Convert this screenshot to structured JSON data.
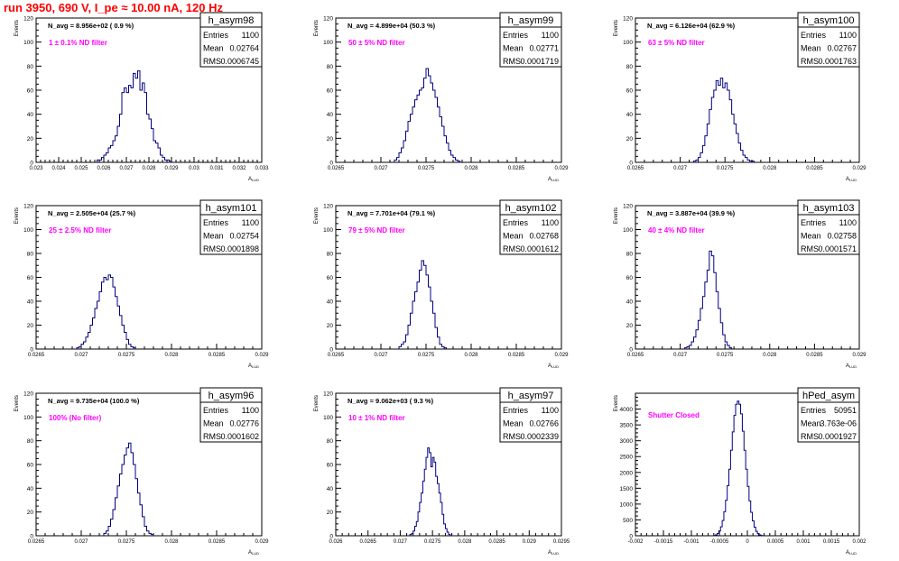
{
  "run_title": "run 3950,   690 V, I_pe ≈ 10.00 nA, 120 Hz",
  "colors": {
    "hist_line": "#00007f",
    "annotation": "#ff00ff",
    "title": "#ff0000",
    "axes": "#000000"
  },
  "chart_data": [
    {
      "type": "histogram",
      "title": "h_asym98",
      "stats": [
        [
          "Entries",
          "1100"
        ],
        [
          "Mean",
          "0.02764"
        ],
        [
          "RMS",
          "0.0006745"
        ]
      ],
      "navg": "N_avg = 8.956e+02 ( 0.9 %)",
      "filter": "1 ± 0.1% ND filter",
      "ylabel": "Events",
      "xlabel": "A",
      "xlim": [
        0.023,
        0.033
      ],
      "ylim": [
        0,
        120
      ],
      "xticks": [
        0.023,
        0.024,
        0.025,
        0.026,
        0.027,
        0.028,
        0.029,
        0.03,
        0.031,
        0.032,
        0.033
      ],
      "xtick_labels": [
        "0.023",
        "0.024",
        "0.025",
        "0.026",
        "0.027",
        "0.028",
        "0.029",
        "0.03",
        "0.031",
        "0.032",
        "0.033"
      ],
      "yticks": [
        0,
        20,
        40,
        60,
        80,
        100,
        120
      ],
      "bin_start": 0.0257,
      "bin_width": 0.0001,
      "counts": [
        2,
        2,
        4,
        6,
        8,
        12,
        14,
        18,
        22,
        30,
        40,
        58,
        62,
        58,
        64,
        62,
        74,
        70,
        76,
        60,
        66,
        58,
        40,
        36,
        28,
        18,
        16,
        12,
        6,
        4,
        2,
        2,
        1
      ]
    },
    {
      "type": "histogram",
      "title": "h_asym99",
      "stats": [
        [
          "Entries",
          "1100"
        ],
        [
          "Mean",
          "0.02771"
        ],
        [
          "RMS",
          "0.0001719"
        ]
      ],
      "navg": "N_avg = 4.899e+04 (50.3 %)",
      "filter": "50 ± 5% ND filter",
      "ylabel": "Events",
      "xlabel": "A",
      "xlim": [
        0.0265,
        0.029
      ],
      "ylim": [
        0,
        120
      ],
      "xticks": [
        0.0265,
        0.027,
        0.0275,
        0.028,
        0.0285,
        0.029
      ],
      "xtick_labels": [
        "0.0265",
        "0.027",
        "0.0275",
        "0.028",
        "0.0285",
        "0.029"
      ],
      "yticks": [
        0,
        20,
        40,
        60,
        80,
        100,
        120
      ],
      "bin_start": 0.02715,
      "bin_width": 2.5e-05,
      "counts": [
        2,
        4,
        8,
        12,
        18,
        26,
        34,
        40,
        46,
        52,
        56,
        60,
        62,
        70,
        78,
        72,
        66,
        60,
        54,
        46,
        38,
        30,
        22,
        16,
        10,
        6,
        4,
        2,
        1
      ]
    },
    {
      "type": "histogram",
      "title": "h_asym100",
      "stats": [
        [
          "Entries",
          "1100"
        ],
        [
          "Mean",
          "0.02767"
        ],
        [
          "RMS",
          "0.0001763"
        ]
      ],
      "navg": "N_avg = 6.126e+04 (62.9 %)",
      "filter": "63 ± 5% ND filter",
      "ylabel": "Events",
      "xlabel": "A",
      "xlim": [
        0.0265,
        0.029
      ],
      "ylim": [
        0,
        120
      ],
      "xticks": [
        0.0265,
        0.027,
        0.0275,
        0.028,
        0.0285,
        0.029
      ],
      "xtick_labels": [
        "0.0265",
        "0.027",
        "0.0275",
        "0.028",
        "0.0285",
        "0.029"
      ],
      "yticks": [
        0,
        20,
        40,
        60,
        80,
        100,
        120
      ],
      "bin_start": 0.02715,
      "bin_width": 2.5e-05,
      "counts": [
        1,
        2,
        4,
        8,
        14,
        22,
        32,
        44,
        54,
        60,
        68,
        64,
        70,
        62,
        66,
        60,
        52,
        40,
        32,
        24,
        16,
        10,
        6,
        4,
        2,
        1,
        1
      ]
    },
    {
      "type": "histogram",
      "title": "h_asym101",
      "stats": [
        [
          "Entries",
          "1100"
        ],
        [
          "Mean",
          "0.02754"
        ],
        [
          "RMS",
          "0.0001898"
        ]
      ],
      "navg": "N_avg = 2.505e+04 (25.7 %)",
      "filter": "25 ± 2.5% ND filter",
      "ylabel": "Events",
      "xlabel": "A",
      "xlim": [
        0.0265,
        0.029
      ],
      "ylim": [
        0,
        120
      ],
      "xticks": [
        0.0265,
        0.027,
        0.0275,
        0.028,
        0.0285,
        0.029
      ],
      "xtick_labels": [
        "0.0265",
        "0.027",
        "0.0275",
        "0.028",
        "0.0285",
        "0.029"
      ],
      "yticks": [
        0,
        20,
        40,
        60,
        80,
        100,
        120
      ],
      "bin_start": 0.02695,
      "bin_width": 2.5e-05,
      "counts": [
        1,
        2,
        4,
        6,
        10,
        14,
        20,
        26,
        34,
        40,
        48,
        56,
        60,
        58,
        62,
        60,
        52,
        44,
        36,
        28,
        20,
        14,
        8,
        4,
        2,
        1
      ]
    },
    {
      "type": "histogram",
      "title": "h_asym102",
      "stats": [
        [
          "Entries",
          "1100"
        ],
        [
          "Mean",
          "0.02768"
        ],
        [
          "RMS",
          "0.0001612"
        ]
      ],
      "navg": "N_avg = 7.701e+04 (79.1 %)",
      "filter": "79 ± 5% ND filter",
      "ylabel": "Events",
      "xlabel": "A",
      "xlim": [
        0.0265,
        0.029
      ],
      "ylim": [
        0,
        120
      ],
      "xticks": [
        0.0265,
        0.027,
        0.0275,
        0.028,
        0.0285,
        0.029
      ],
      "xtick_labels": [
        "0.0265",
        "0.027",
        "0.0275",
        "0.028",
        "0.0285",
        "0.029"
      ],
      "yticks": [
        0,
        20,
        40,
        60,
        80,
        100,
        120
      ],
      "bin_start": 0.0272,
      "bin_width": 2.5e-05,
      "counts": [
        2,
        4,
        6,
        12,
        20,
        30,
        40,
        48,
        56,
        66,
        74,
        70,
        62,
        52,
        40,
        30,
        18,
        10,
        4,
        2,
        1
      ]
    },
    {
      "type": "histogram",
      "title": "h_asym103",
      "stats": [
        [
          "Entries",
          "1100"
        ],
        [
          "Mean",
          "0.02758"
        ],
        [
          "RMS",
          "0.0001571"
        ]
      ],
      "navg": "N_avg = 3.887e+04 (39.9 %)",
      "filter": "40 ± 4% ND filter",
      "ylabel": "Events",
      "xlabel": "A",
      "xlim": [
        0.0265,
        0.029
      ],
      "ylim": [
        0,
        120
      ],
      "xticks": [
        0.0265,
        0.027,
        0.0275,
        0.028,
        0.0285,
        0.029
      ],
      "xtick_labels": [
        "0.0265",
        "0.027",
        "0.0275",
        "0.028",
        "0.0285",
        "0.029"
      ],
      "yticks": [
        0,
        20,
        40,
        60,
        80,
        100,
        120
      ],
      "bin_start": 0.02705,
      "bin_width": 2.5e-05,
      "counts": [
        1,
        2,
        3,
        6,
        10,
        16,
        24,
        34,
        44,
        56,
        66,
        82,
        78,
        64,
        48,
        34,
        22,
        12,
        6,
        3,
        1
      ]
    },
    {
      "type": "histogram",
      "title": "h_asym96",
      "stats": [
        [
          "Entries",
          "1100"
        ],
        [
          "Mean",
          "0.02776"
        ],
        [
          "RMS",
          "0.0001602"
        ]
      ],
      "navg": "N_avg = 9.735e+04 (100.0 %)",
      "filter": "100% (No filter)",
      "ylabel": "Events",
      "xlabel": "A",
      "xlim": [
        0.0265,
        0.029
      ],
      "ylim": [
        0,
        120
      ],
      "xticks": [
        0.0265,
        0.027,
        0.0275,
        0.028,
        0.0285,
        0.029
      ],
      "xtick_labels": [
        "0.0265",
        "0.027",
        "0.0275",
        "0.028",
        "0.0285",
        "0.029"
      ],
      "yticks": [
        0,
        20,
        40,
        60,
        80,
        100,
        120
      ],
      "bin_start": 0.02725,
      "bin_width": 2.5e-05,
      "counts": [
        2,
        4,
        8,
        14,
        22,
        32,
        42,
        52,
        60,
        68,
        74,
        78,
        70,
        60,
        48,
        36,
        26,
        16,
        8,
        4,
        2,
        1
      ]
    },
    {
      "type": "histogram",
      "title": "h_asym97",
      "stats": [
        [
          "Entries",
          "1100"
        ],
        [
          "Mean",
          "0.02766"
        ],
        [
          "RMS",
          "0.0002339"
        ]
      ],
      "navg": "N_avg = 9.062e+03 ( 9.3 %)",
      "filter": "10 ± 1% ND filter",
      "ylabel": "Events",
      "xlabel": "A",
      "xlim": [
        0.026,
        0.0295
      ],
      "ylim": [
        0,
        120
      ],
      "xticks": [
        0.026,
        0.0265,
        0.027,
        0.0275,
        0.028,
        0.0285,
        0.029,
        0.0295
      ],
      "xtick_labels": [
        "0.026",
        "0.0265",
        "0.027",
        "0.0275",
        "0.028",
        "0.0285",
        "0.029",
        "0.0295"
      ],
      "yticks": [
        0,
        20,
        40,
        60,
        80,
        100,
        120
      ],
      "bin_start": 0.02715,
      "bin_width": 2.5e-05,
      "counts": [
        1,
        2,
        4,
        8,
        12,
        20,
        28,
        36,
        46,
        56,
        66,
        74,
        70,
        58,
        66,
        62,
        50,
        44,
        36,
        28,
        18,
        10,
        6,
        3,
        1
      ]
    },
    {
      "type": "histogram",
      "title": "hPed_asym",
      "stats": [
        [
          "Entries",
          "50951"
        ],
        [
          "Mean",
          "3.763e-06"
        ],
        [
          "RMS",
          "0.0001927"
        ]
      ],
      "navg": "",
      "filter": "Shutter Closed",
      "ylabel": "Events",
      "xlabel": "A",
      "xlim": [
        -0.002,
        0.002
      ],
      "ylim": [
        0,
        4500
      ],
      "xticks": [
        -0.002,
        -0.0015,
        -0.001,
        -0.0005,
        0,
        0.0005,
        0.001,
        0.0015,
        0.002
      ],
      "xtick_labels": [
        "-0.002",
        "-0.0015",
        "-0.001",
        "-0.0005",
        "0",
        "0.0005",
        "0.001",
        "0.0015",
        "0.002"
      ],
      "yticks": [
        0,
        500,
        1000,
        1500,
        2000,
        2500,
        3000,
        3500,
        4000
      ],
      "bin_start": -0.0006,
      "bin_width": 3e-05,
      "counts": [
        10,
        30,
        70,
        150,
        280,
        480,
        760,
        1120,
        1580,
        2100,
        2700,
        3280,
        3800,
        4150,
        4250,
        4150,
        3850,
        3300,
        2700,
        2100,
        1560,
        1100,
        740,
        470,
        270,
        140,
        70,
        30,
        12
      ]
    }
  ]
}
